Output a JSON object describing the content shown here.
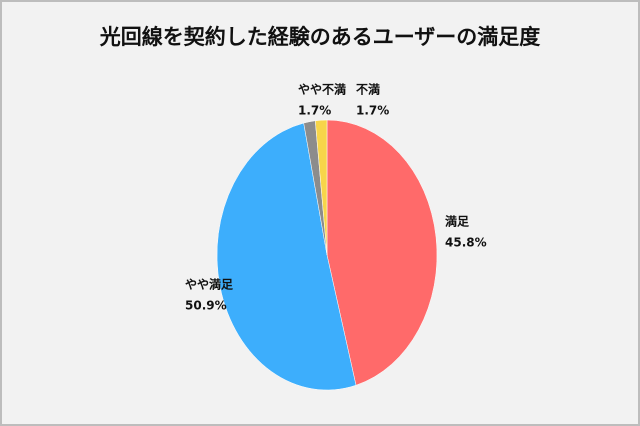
{
  "chart_data": {
    "type": "pie",
    "title": "光回線を契約した経験のあるユーザーの満足度",
    "categories": [
      "満足",
      "やや満足",
      "やや不満",
      "不満"
    ],
    "values": [
      45.8,
      50.9,
      1.7,
      1.7
    ],
    "value_labels": [
      "45.8%",
      "50.9%",
      "1.7%",
      "1.7%"
    ],
    "colors": [
      "#ff6a6a",
      "#3daefc",
      "#8c8c8c",
      "#f7d54a"
    ]
  }
}
